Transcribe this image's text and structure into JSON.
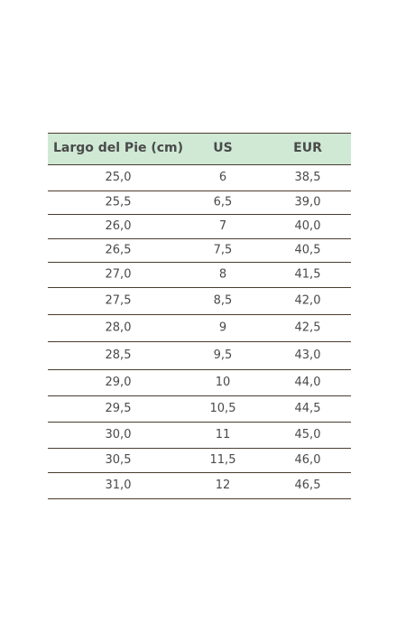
{
  "table": {
    "header": [
      "Largo del Pie (cm)",
      "US",
      "EUR"
    ],
    "rows": [
      [
        "25,0",
        "6",
        "38,5"
      ],
      [
        "25,5",
        "6,5",
        "39,0"
      ],
      [
        "26,0",
        "7",
        "40,0"
      ],
      [
        "26,5",
        "7,5",
        "40,5"
      ],
      [
        "27,0",
        "8",
        "41,5"
      ],
      [
        "27,5",
        "8,5",
        "42,0"
      ],
      [
        "28,0",
        "9",
        "42,5"
      ],
      [
        "28,5",
        "9,5",
        "43,0"
      ],
      [
        "29,0",
        "10",
        "44,0"
      ],
      [
        "29,5",
        "10,5",
        "44,5"
      ],
      [
        "30,0",
        "11",
        "45,0"
      ],
      [
        "30,5",
        "11,5",
        "46,0"
      ],
      [
        "31,0",
        "12",
        "46,5"
      ]
    ]
  }
}
